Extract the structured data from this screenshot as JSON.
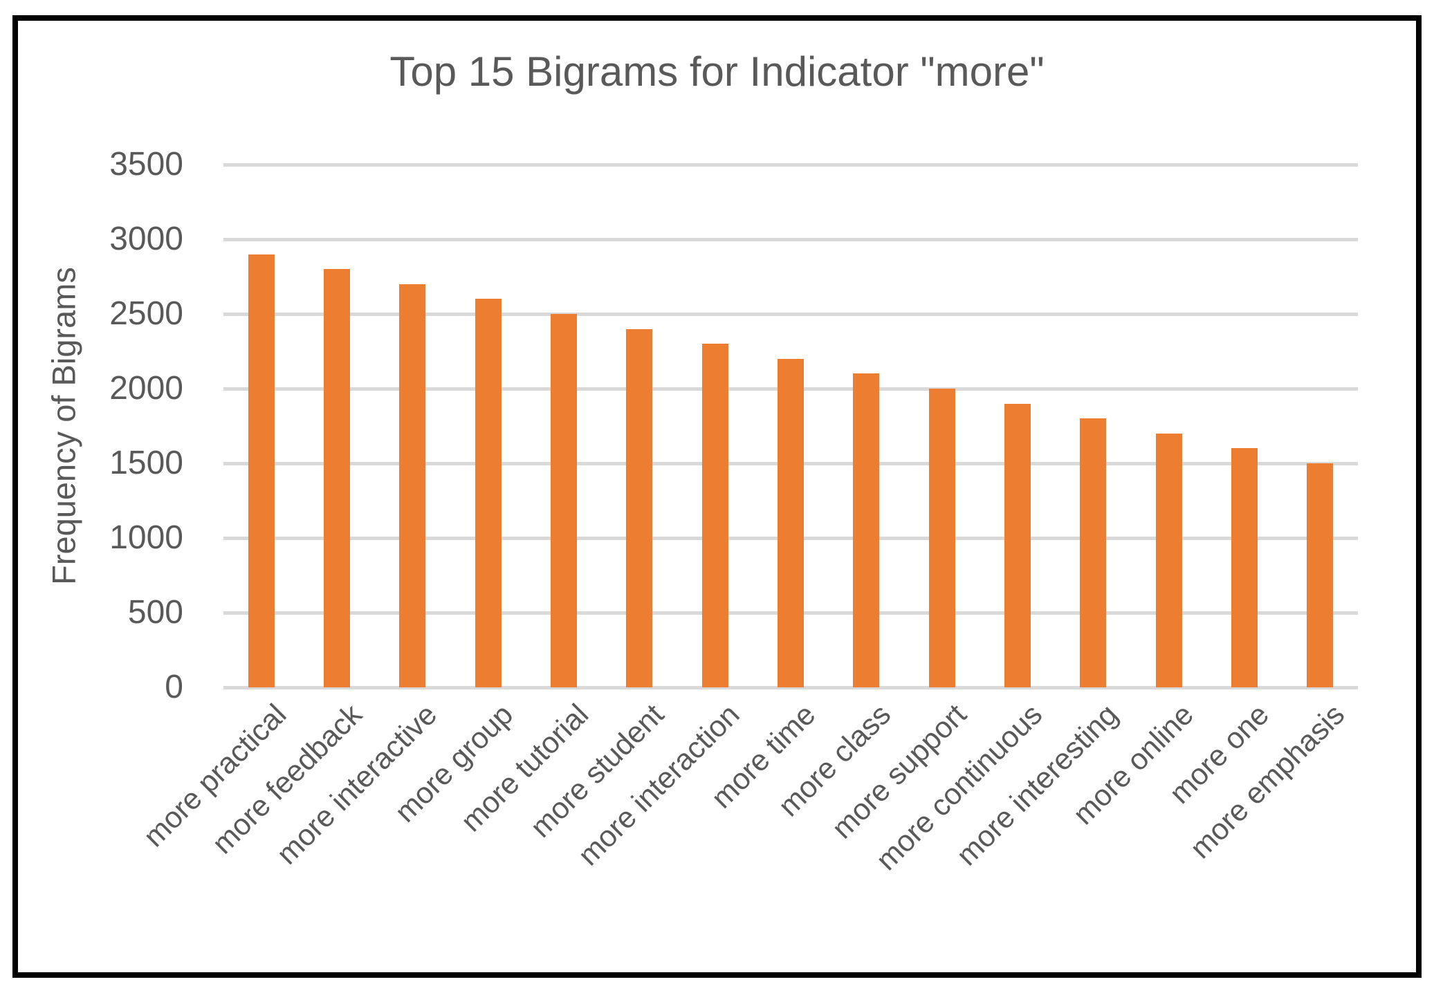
{
  "chart_data": {
    "type": "bar",
    "title": "Top 15 Bigrams for Indicator \"more\"",
    "ylabel": "Frequency of Bigrams",
    "xlabel": "",
    "categories": [
      "more practical",
      "more feedback",
      "more interactive",
      "more group",
      "more tutorial",
      "more student",
      "more interaction",
      "more time",
      "more class",
      "more support",
      "more continuous",
      "more interesting",
      "more online",
      "more one",
      "more emphasis"
    ],
    "values": [
      2900,
      2800,
      2700,
      2600,
      2500,
      2400,
      2300,
      2200,
      2100,
      2000,
      1900,
      1800,
      1700,
      1600,
      1500
    ],
    "ylim": [
      0,
      3500
    ],
    "yticks": [
      0,
      500,
      1000,
      1500,
      2000,
      2500,
      3000,
      3500
    ],
    "grid": "horizontal-gridlines-on",
    "legend_position": "none",
    "colors": {
      "bar": "#ed7d31",
      "gridline": "#d9d9d9",
      "text": "#595959",
      "frame_border": "#000000",
      "background": "#ffffff"
    }
  }
}
